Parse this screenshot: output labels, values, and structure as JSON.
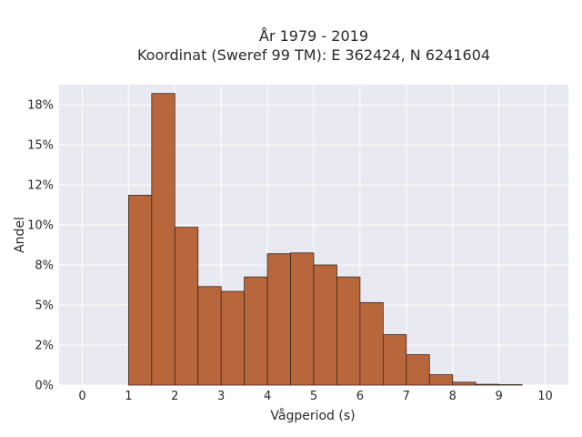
{
  "chart_data": {
    "type": "bar",
    "title_lines": [
      "År 1979 - 2019",
      "Koordinat (Sweref 99 TM): E 362424, N 6241604"
    ],
    "xlabel": "Vågperiod (s)",
    "ylabel": "Andel",
    "xlim": [
      -0.5,
      10.5
    ],
    "ylim": [
      0,
      0.1875
    ],
    "x_ticks": [
      0,
      1,
      2,
      3,
      4,
      5,
      6,
      7,
      8,
      9,
      10
    ],
    "x_tick_labels": [
      "0",
      "1",
      "2",
      "3",
      "4",
      "5",
      "6",
      "7",
      "8",
      "9",
      "10"
    ],
    "y_ticks": [
      0,
      0.025,
      0.05,
      0.075,
      0.1,
      0.125,
      0.15,
      0.175
    ],
    "y_tick_labels": [
      "0%",
      "2%",
      "5%",
      "8%",
      "10%",
      "12%",
      "15%",
      "18%"
    ],
    "bin_width": 0.5,
    "bins": [
      {
        "x0": 1.0,
        "x1": 1.5,
        "value": 0.1185
      },
      {
        "x0": 1.5,
        "x1": 2.0,
        "value": 0.182
      },
      {
        "x0": 2.0,
        "x1": 2.5,
        "value": 0.0985
      },
      {
        "x0": 2.5,
        "x1": 3.0,
        "value": 0.0615
      },
      {
        "x0": 3.0,
        "x1": 3.5,
        "value": 0.0585
      },
      {
        "x0": 3.5,
        "x1": 4.0,
        "value": 0.0675
      },
      {
        "x0": 4.0,
        "x1": 4.5,
        "value": 0.082
      },
      {
        "x0": 4.5,
        "x1": 5.0,
        "value": 0.0825
      },
      {
        "x0": 5.0,
        "x1": 5.5,
        "value": 0.075
      },
      {
        "x0": 5.5,
        "x1": 6.0,
        "value": 0.0675
      },
      {
        "x0": 6.0,
        "x1": 6.5,
        "value": 0.0515
      },
      {
        "x0": 6.5,
        "x1": 7.0,
        "value": 0.0315
      },
      {
        "x0": 7.0,
        "x1": 7.5,
        "value": 0.019
      },
      {
        "x0": 7.5,
        "x1": 8.0,
        "value": 0.0065
      },
      {
        "x0": 8.0,
        "x1": 8.5,
        "value": 0.0018
      },
      {
        "x0": 8.5,
        "x1": 9.0,
        "value": 0.0005
      },
      {
        "x0": 9.0,
        "x1": 9.5,
        "value": 0.0003
      }
    ],
    "grid": true,
    "colors": {
      "bar_fill": "#b8663b",
      "bar_edge": "#3b2a1e",
      "plot_bg": "#e9e9f2",
      "grid": "#ffffff"
    }
  }
}
